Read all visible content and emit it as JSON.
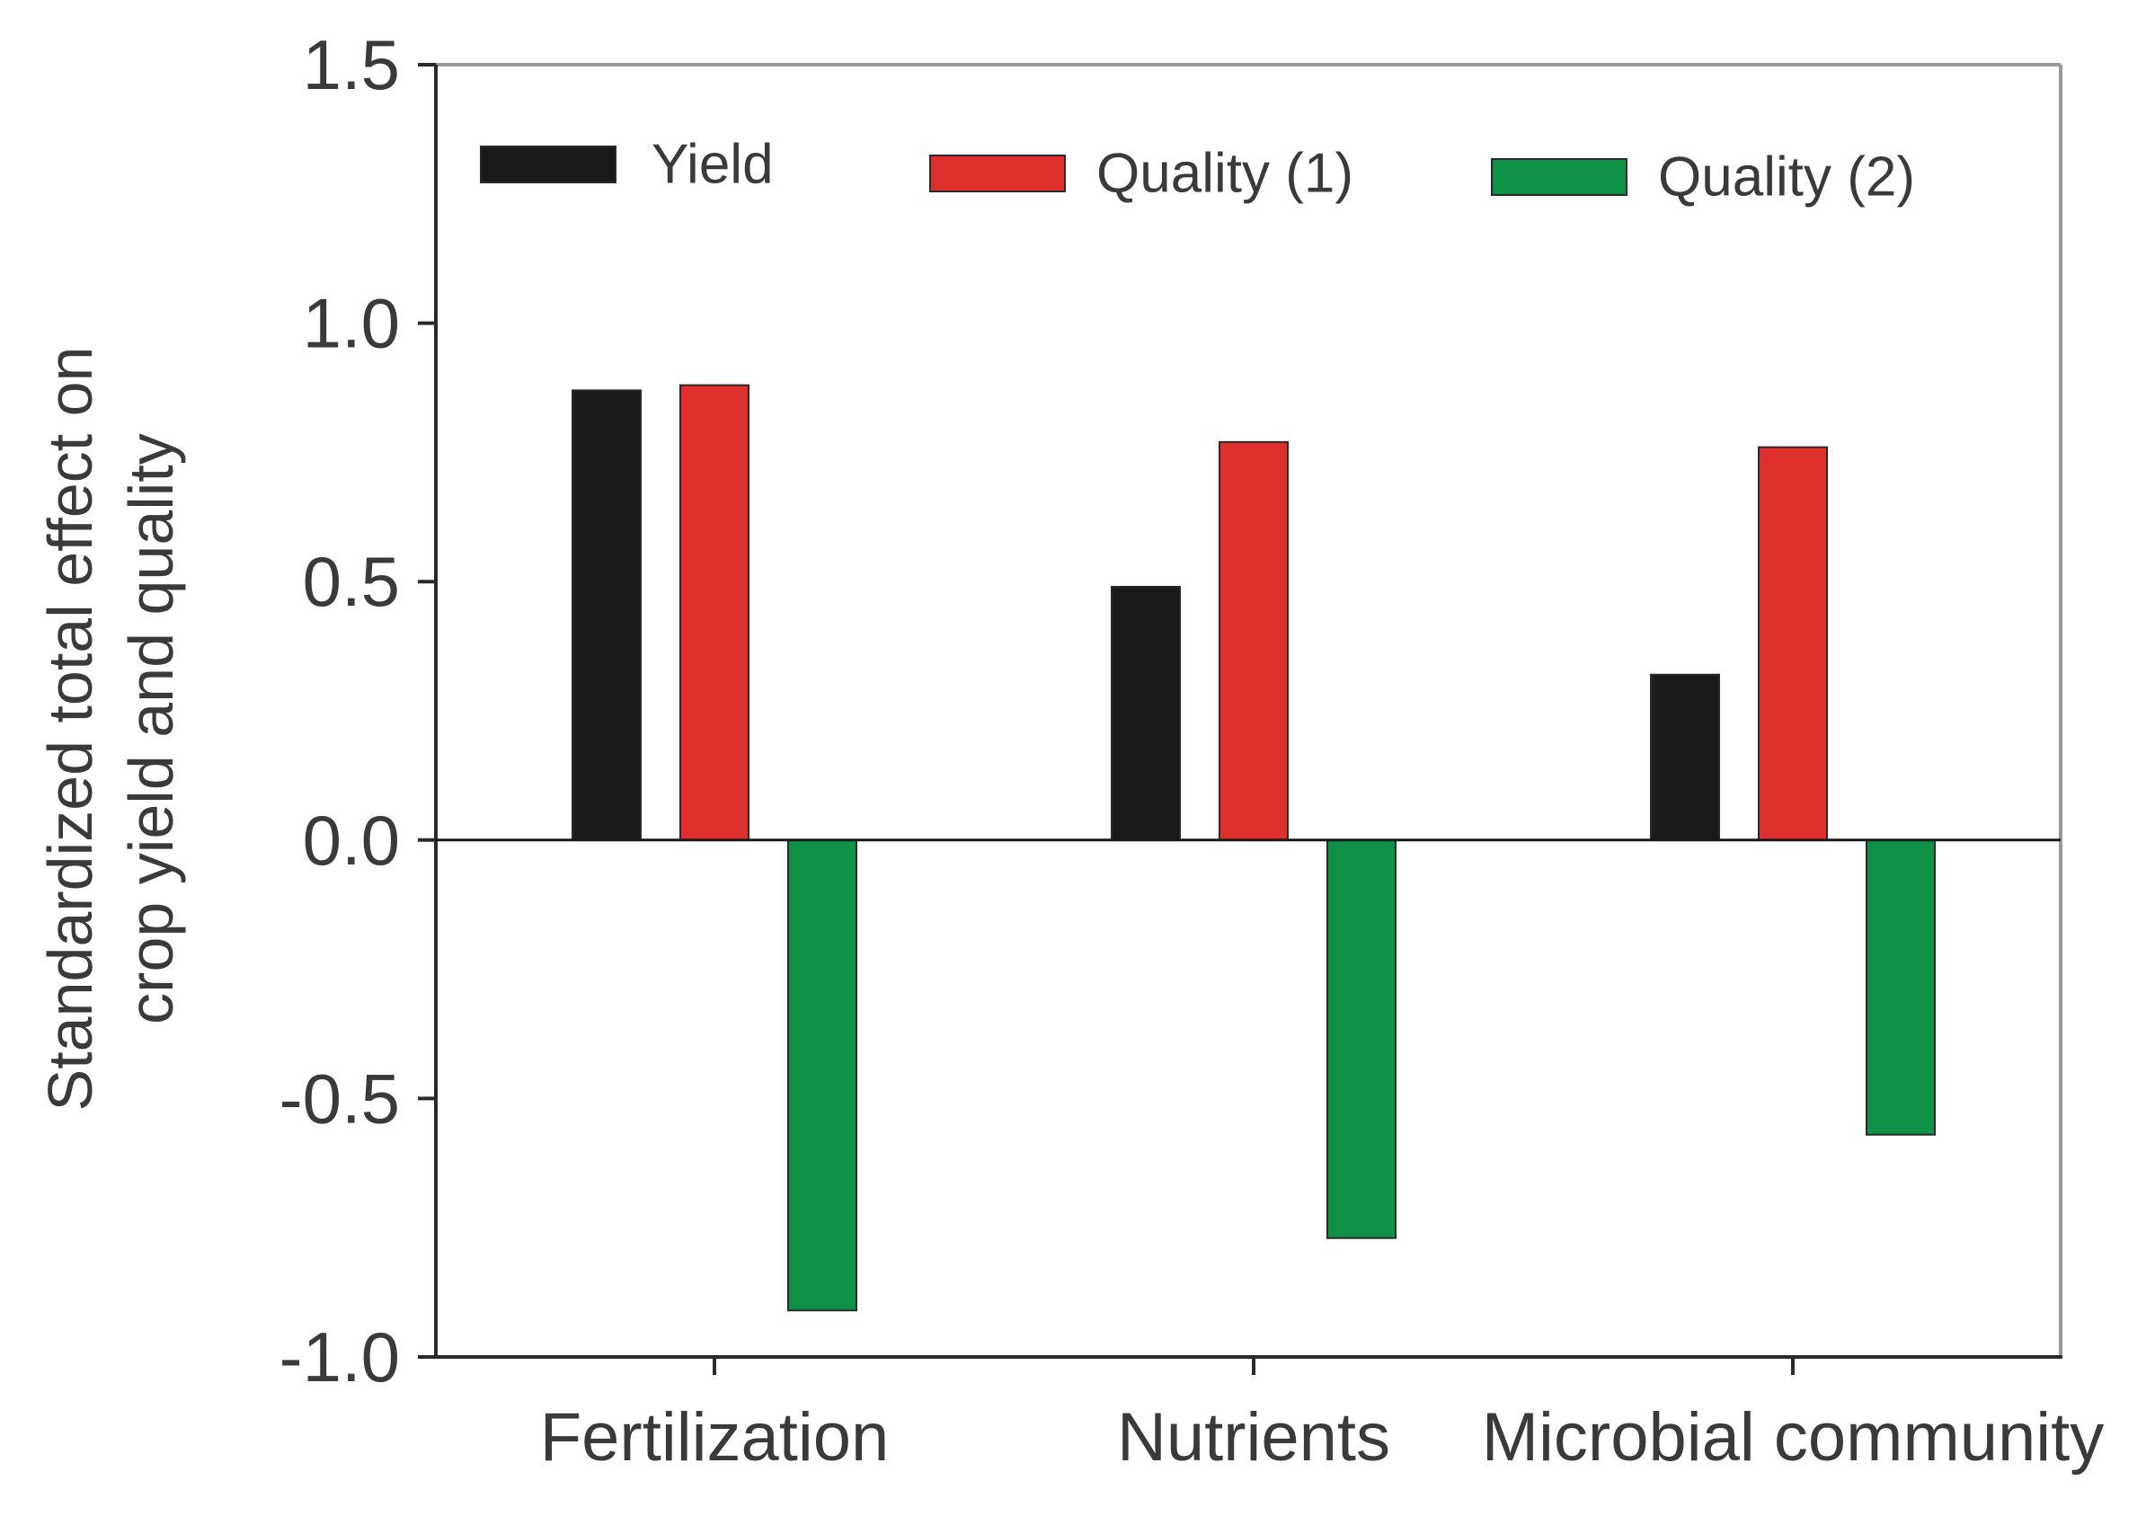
{
  "chart_data": {
    "type": "bar",
    "title": "",
    "xlabel": "",
    "ylabel_lines": [
      "Standardized total effect on",
      "crop yield and quality"
    ],
    "ylim": [
      -1.0,
      1.5
    ],
    "yticks": [
      -1.0,
      -0.5,
      0.0,
      0.5,
      1.0,
      1.5
    ],
    "ytick_labels": [
      "-1.0",
      "-0.5",
      "0.0",
      "0.5",
      "1.0",
      "1.5"
    ],
    "categories": [
      "Fertilization",
      "Nutrients",
      "Microbial community"
    ],
    "series": [
      {
        "name": "Yield",
        "color": "#1a1a1a",
        "values": [
          0.87,
          0.49,
          0.32
        ]
      },
      {
        "name": "Quality (1)",
        "color": "#e0302e",
        "values": [
          0.88,
          0.77,
          0.76
        ]
      },
      {
        "name": "Quality (2)",
        "color": "#0f9147",
        "values": [
          -0.91,
          -0.77,
          -0.57
        ]
      }
    ],
    "legend_position": "top",
    "grid": false,
    "zero_line": true
  }
}
